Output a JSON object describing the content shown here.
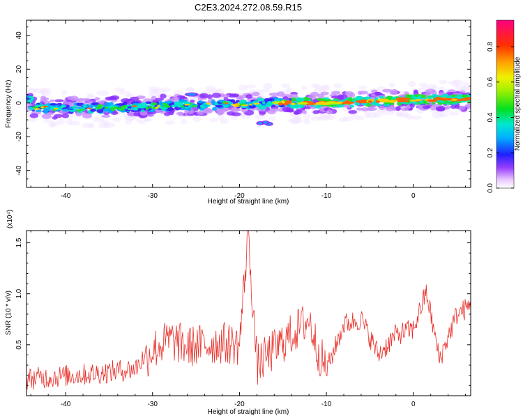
{
  "title": "C2E3.2024.272.08.59.R15",
  "chart_data": [
    {
      "type": "heatmap",
      "xlabel": "Height of straight line (km)",
      "ylabel": "Frequency (Hz)",
      "xlim": [
        -44.5,
        6.6
      ],
      "ylim": [
        -50,
        49
      ],
      "xticks": [
        -40,
        -30,
        -20,
        -10,
        0
      ],
      "yticks": [
        -40,
        -20,
        0,
        20,
        40
      ],
      "colorbar": {
        "label": "Normalized spectral amplitude",
        "range": [
          0.0,
          0.95
        ],
        "ticks": [
          0.0,
          0.2,
          0.4,
          0.6,
          0.8
        ]
      },
      "band_center_hz": [
        {
          "x": -44,
          "y": -3
        },
        {
          "x": -40,
          "y": -3
        },
        {
          "x": -36,
          "y": -3
        },
        {
          "x": -30,
          "y": -2
        },
        {
          "x": -25,
          "y": -1
        },
        {
          "x": -20,
          "y": -1
        },
        {
          "x": -15,
          "y": 0
        },
        {
          "x": -10,
          "y": 0
        },
        {
          "x": -5,
          "y": 1
        },
        {
          "x": 0,
          "y": 2
        },
        {
          "x": 6,
          "y": 2
        }
      ]
    },
    {
      "type": "line",
      "xlabel": "Height of straight line (km)",
      "ylabel": "SNR (10 * v/v)",
      "y_scale_label": "(x10⁴)",
      "xlim": [
        -44.5,
        6.6
      ],
      "ylim": [
        0,
        1.62
      ],
      "xticks": [
        -40,
        -30,
        -20,
        -10,
        0
      ],
      "yticks": [
        0.5,
        1.0,
        1.5
      ],
      "ytick_labels": [
        "0.5",
        "1.0",
        "1.5"
      ],
      "color": "#e8302a",
      "series_envelope": [
        {
          "x": -44.5,
          "y": 0.12
        },
        {
          "x": -40,
          "y": 0.15
        },
        {
          "x": -36,
          "y": 0.18
        },
        {
          "x": -32,
          "y": 0.22
        },
        {
          "x": -30,
          "y": 0.45
        },
        {
          "x": -28,
          "y": 0.55
        },
        {
          "x": -26,
          "y": 0.48
        },
        {
          "x": -24,
          "y": 0.5
        },
        {
          "x": -22,
          "y": 0.52
        },
        {
          "x": -20,
          "y": 0.5
        },
        {
          "x": -19,
          "y": 1.6
        },
        {
          "x": -18,
          "y": 0.3
        },
        {
          "x": -16,
          "y": 0.45
        },
        {
          "x": -14,
          "y": 0.6
        },
        {
          "x": -12,
          "y": 0.75
        },
        {
          "x": -11,
          "y": 0.45
        },
        {
          "x": -10,
          "y": 0.25
        },
        {
          "x": -8,
          "y": 0.7
        },
        {
          "x": -6,
          "y": 0.75
        },
        {
          "x": -4,
          "y": 0.4
        },
        {
          "x": -2,
          "y": 0.6
        },
        {
          "x": 0,
          "y": 0.65
        },
        {
          "x": 1.5,
          "y": 1.02
        },
        {
          "x": 3,
          "y": 0.35
        },
        {
          "x": 5,
          "y": 0.8
        },
        {
          "x": 6.6,
          "y": 0.88
        }
      ]
    }
  ]
}
